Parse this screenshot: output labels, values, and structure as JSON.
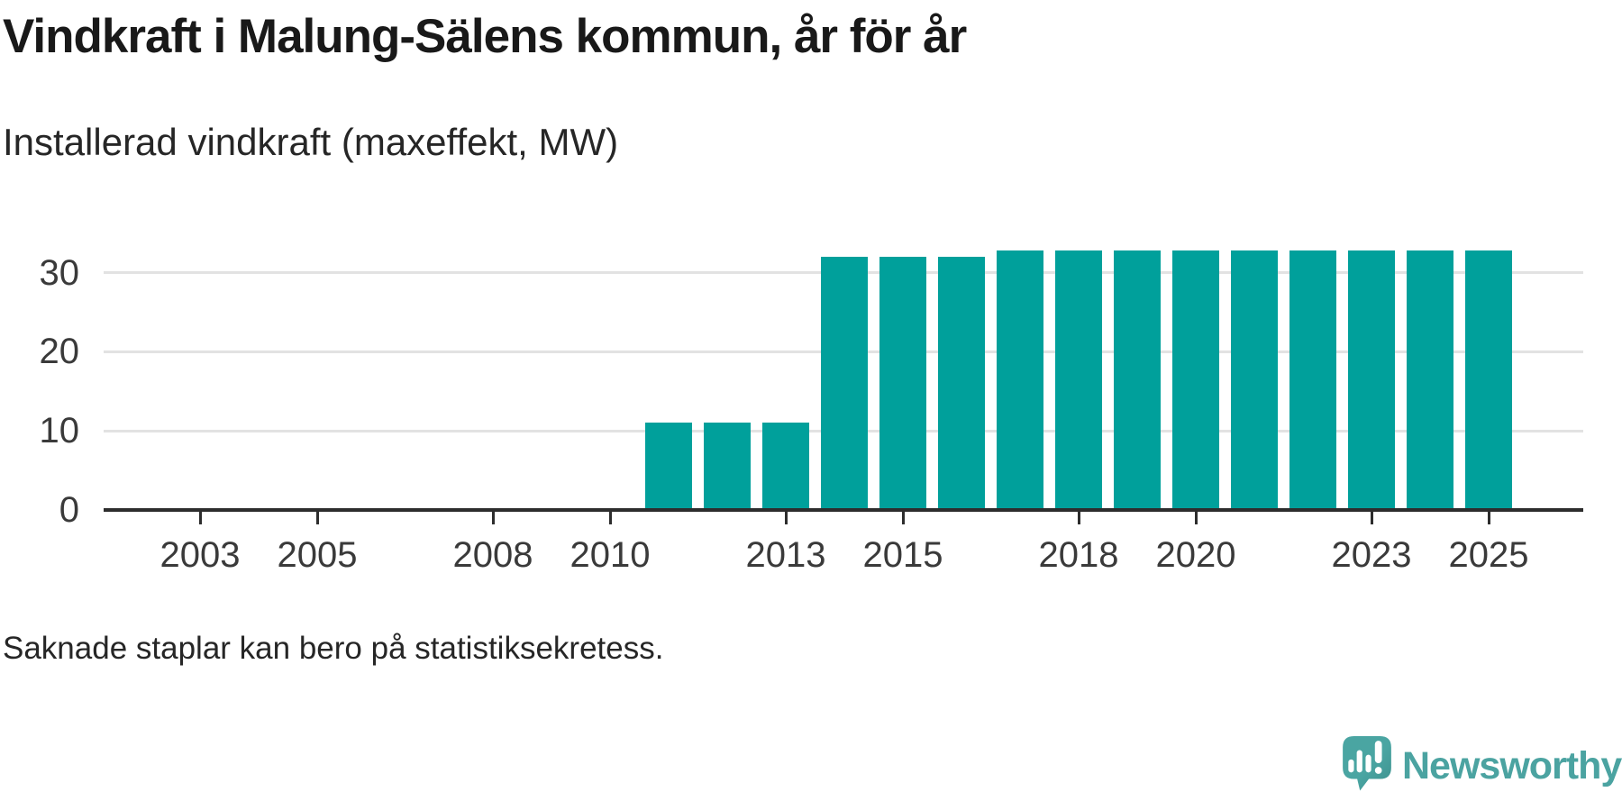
{
  "header": {
    "title": "Vindkraft i Malung-Sälens kommun, år för år",
    "subtitle": "Installerad vindkraft (maxeffekt, MW)"
  },
  "footer": {
    "note": "Saknade staplar kan bero på statistiksekretess.",
    "brand": "Newsworthy"
  },
  "colors": {
    "bar": "#00a09b",
    "grid": "#e2e2e2",
    "axis": "#2d2d2d",
    "tick_label": "#3a3a3a",
    "title_text": "#191919",
    "body_text": "#262626",
    "logo_fill": "#4aa5a2",
    "logo_shadow": "#3d908d",
    "logo_text": "#4ba3a1"
  },
  "chart_data": {
    "type": "bar",
    "title": "Vindkraft i Malung-Sälens kommun, år för år",
    "subtitle": "Installerad vindkraft (maxeffekt, MW)",
    "xlabel": "",
    "ylabel": "MW",
    "categories": [
      2002,
      2003,
      2004,
      2005,
      2006,
      2007,
      2008,
      2009,
      2010,
      2011,
      2012,
      2013,
      2014,
      2015,
      2016,
      2017,
      2018,
      2019,
      2020,
      2021,
      2022,
      2023,
      2024,
      2025
    ],
    "values": [
      null,
      null,
      null,
      null,
      null,
      null,
      null,
      null,
      null,
      11,
      11,
      11,
      32,
      32,
      32,
      32.8,
      32.8,
      32.8,
      32.8,
      32.8,
      32.8,
      32.8,
      32.8,
      32.8
    ],
    "x_tick_years": [
      2003,
      2005,
      2008,
      2010,
      2013,
      2015,
      2018,
      2020,
      2023,
      2025
    ],
    "y_ticks": [
      0,
      10,
      20,
      30
    ],
    "ylim": [
      0,
      37
    ],
    "grid": true,
    "legend_position": "none",
    "bar_color": "#00a09b"
  }
}
